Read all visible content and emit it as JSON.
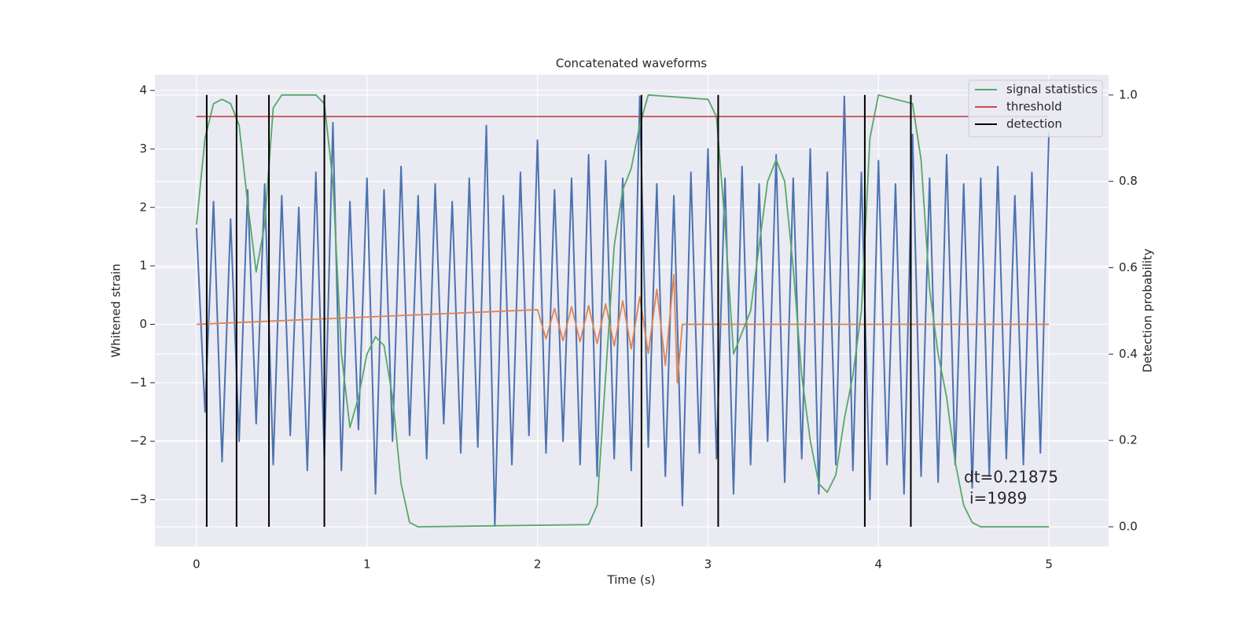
{
  "chart_data": {
    "type": "line",
    "title": "Concatenated waveforms",
    "x_label": "Time (s)",
    "y_label": "Whitened strain",
    "y2_label": "Detection probability",
    "xlim": [
      -0.244,
      5.35
    ],
    "ylim": [
      -3.8,
      4.27
    ],
    "y2lim": [
      -0.0455,
      1.047
    ],
    "xticks": [
      0,
      1,
      2,
      3,
      4,
      5
    ],
    "yticks": [
      {
        "value": -3,
        "label": "−3"
      },
      {
        "value": -2,
        "label": "−2"
      },
      {
        "value": -1,
        "label": "−1"
      },
      0,
      1,
      2,
      3,
      4
    ],
    "y2ticks": [
      {
        "value": 0,
        "label": "0.0"
      },
      {
        "value": 0.2,
        "label": "0.2"
      },
      {
        "value": 0.4,
        "label": "0.4"
      },
      {
        "value": 0.6,
        "label": "0.6"
      },
      {
        "value": 0.8,
        "label": "0.8"
      },
      {
        "value": 1,
        "label": "1.0"
      }
    ],
    "grid": true,
    "legend": "upper right",
    "annotations": [
      "dt=0.21875",
      "i=1989"
    ],
    "series": [
      {
        "color": "#4c72b0",
        "x": [
          0,
          0.05,
          0.1,
          0.15,
          0.2,
          0.25,
          0.3,
          0.35,
          0.4,
          0.45,
          0.5,
          0.55,
          0.6,
          0.65,
          0.7,
          0.75,
          0.8,
          0.85,
          0.9,
          0.95,
          1,
          1.05,
          1.1,
          1.15,
          1.2,
          1.25,
          1.3,
          1.35,
          1.4,
          1.45,
          1.5,
          1.55,
          1.6,
          1.65,
          1.7,
          1.75,
          1.8,
          1.85,
          1.9,
          1.95,
          2,
          2.05,
          2.1,
          2.15,
          2.2,
          2.25,
          2.3,
          2.35,
          2.4,
          2.45,
          2.5,
          2.55,
          2.6,
          2.65,
          2.7,
          2.75,
          2.8,
          2.85,
          2.9,
          2.95,
          3,
          3.05,
          3.1,
          3.15,
          3.2,
          3.25,
          3.3,
          3.35,
          3.4,
          3.45,
          3.5,
          3.55,
          3.6,
          3.65,
          3.7,
          3.75,
          3.8,
          3.85,
          3.9,
          3.95,
          4,
          4.05,
          4.1,
          4.15,
          4.2,
          4.25,
          4.3,
          4.35,
          4.4,
          4.45,
          4.5,
          4.55,
          4.6,
          4.65,
          4.7,
          4.75,
          4.8,
          4.85,
          4.9,
          4.95,
          5
        ],
        "values": [
          1.65,
          -1.5,
          2.1,
          -2.35,
          1.8,
          -2.0,
          2.3,
          -1.7,
          2.4,
          -2.4,
          2.2,
          -1.9,
          2.0,
          -2.5,
          2.6,
          -2.3,
          3.45,
          -2.5,
          2.1,
          -1.8,
          2.5,
          -2.9,
          2.3,
          -2.0,
          2.7,
          -1.9,
          2.2,
          -2.3,
          2.4,
          -1.7,
          2.1,
          -2.2,
          2.5,
          -2.1,
          3.4,
          -3.45,
          2.2,
          -2.4,
          2.6,
          -1.9,
          3.15,
          -2.2,
          2.3,
          -2.0,
          2.5,
          -2.4,
          2.9,
          -2.6,
          2.8,
          -2.3,
          2.5,
          -2.5,
          3.9,
          -2.1,
          2.4,
          -2.6,
          2.2,
          -3.1,
          2.6,
          -2.2,
          3.0,
          -2.3,
          2.5,
          -2.9,
          2.7,
          -2.4,
          2.4,
          -2.0,
          2.9,
          -2.7,
          2.5,
          -2.3,
          3.0,
          -2.9,
          2.6,
          -2.4,
          3.9,
          -2.5,
          2.6,
          -3.0,
          2.8,
          -2.4,
          2.4,
          -2.9,
          3.25,
          -2.6,
          2.5,
          -2.7,
          2.9,
          -2.4,
          2.4,
          -2.8,
          2.5,
          -2.6,
          2.7,
          -2.3,
          2.2,
          -2.4,
          2.6,
          -2.2,
          3.3
        ]
      },
      {
        "color": "#dd8452",
        "x": [
          0,
          2,
          2.05,
          2.1,
          2.15,
          2.2,
          2.25,
          2.3,
          2.35,
          2.4,
          2.45,
          2.5,
          2.55,
          2.6,
          2.65,
          2.7,
          2.75,
          2.8,
          2.82,
          2.85,
          5
        ],
        "values": [
          0,
          0.25,
          -0.25,
          0.27,
          -0.28,
          0.3,
          -0.3,
          0.32,
          -0.33,
          0.35,
          -0.37,
          0.4,
          -0.42,
          0.47,
          -0.5,
          0.6,
          -0.7,
          0.85,
          -1.0,
          0,
          0
        ]
      },
      {
        "name": "signal statistics",
        "color": "#55a868",
        "axis": "y2",
        "x": [
          0,
          0.05,
          0.1,
          0.15,
          0.2,
          0.25,
          0.3,
          0.35,
          0.4,
          0.45,
          0.5,
          0.7,
          0.75,
          0.8,
          0.85,
          0.9,
          0.95,
          1,
          1.05,
          1.1,
          1.15,
          1.2,
          1.25,
          1.3,
          2.3,
          2.35,
          2.4,
          2.45,
          2.5,
          2.55,
          2.6,
          2.65,
          3,
          3.05,
          3.1,
          3.15,
          3.2,
          3.25,
          3.3,
          3.35,
          3.4,
          3.45,
          3.5,
          3.55,
          3.6,
          3.65,
          3.7,
          3.75,
          3.8,
          3.85,
          3.9,
          3.95,
          4,
          4.2,
          4.25,
          4.3,
          4.35,
          4.4,
          4.45,
          4.5,
          4.55,
          4.6,
          5
        ],
        "values": [
          0.7,
          0.9,
          0.98,
          0.99,
          0.98,
          0.93,
          0.75,
          0.59,
          0.7,
          0.97,
          1.0,
          1.0,
          0.98,
          0.8,
          0.4,
          0.23,
          0.3,
          0.4,
          0.44,
          0.42,
          0.3,
          0.1,
          0.01,
          0,
          0.005,
          0.05,
          0.35,
          0.65,
          0.78,
          0.83,
          0.93,
          1.0,
          0.99,
          0.95,
          0.7,
          0.4,
          0.45,
          0.5,
          0.65,
          0.8,
          0.85,
          0.8,
          0.6,
          0.35,
          0.2,
          0.1,
          0.08,
          0.12,
          0.25,
          0.35,
          0.5,
          0.9,
          1.0,
          0.98,
          0.85,
          0.55,
          0.4,
          0.3,
          0.15,
          0.05,
          0.01,
          0,
          0
        ]
      },
      {
        "name": "threshold",
        "color": "#c44e52",
        "axis": "y2",
        "x": [
          0,
          5
        ],
        "values": [
          0.95,
          0.95
        ]
      },
      {
        "name": "detection",
        "color": "#000000",
        "axis": "y2",
        "kind": "vlines",
        "x": [
          0.06,
          0.235,
          0.425,
          0.75,
          2.61,
          3.06,
          3.92,
          4.19
        ],
        "values": [
          1,
          1,
          1,
          1,
          1,
          1,
          1,
          1
        ]
      }
    ]
  }
}
